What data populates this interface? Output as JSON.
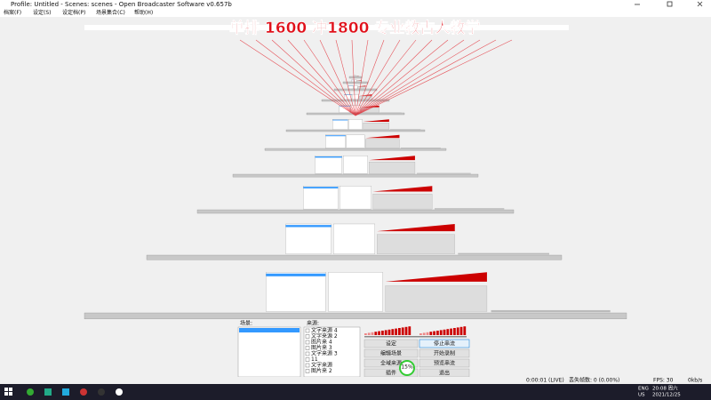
{
  "title_bar": "Profile: Untitled - Scenes: scenes - Open Broadcaster Software v0.657b",
  "menu": [
    "档案(F)",
    "设定(S)",
    "设定档(P)",
    "场景集合(C)",
    "帮助(H)"
  ],
  "overlay_text": "单排 1600 冲1800 专业教古人教学",
  "scenes_label": "场景:",
  "sources_label": "来源:",
  "sources": [
    "文字来源 4",
    "文字来源 2",
    "图片来 4",
    "图片来 3",
    "文字来源 3",
    "11",
    "文字来源",
    "图片来 2"
  ],
  "buttons": [
    "设定",
    "停止串流",
    "编辑场景",
    "开始录制",
    "全域来源",
    "预览串流",
    "插件",
    "退出"
  ],
  "gauge": "15%",
  "status": {
    "time": "0:00:01 (LIVE)",
    "dropped": "丢失帧数: 0 (0.00%)",
    "fps": "FPS: 30",
    "rate": "0kb/s"
  },
  "taskbar": {
    "lang": "ENG",
    "region": "US",
    "clock": "20:08 周六",
    "date": "2021/12/25"
  }
}
